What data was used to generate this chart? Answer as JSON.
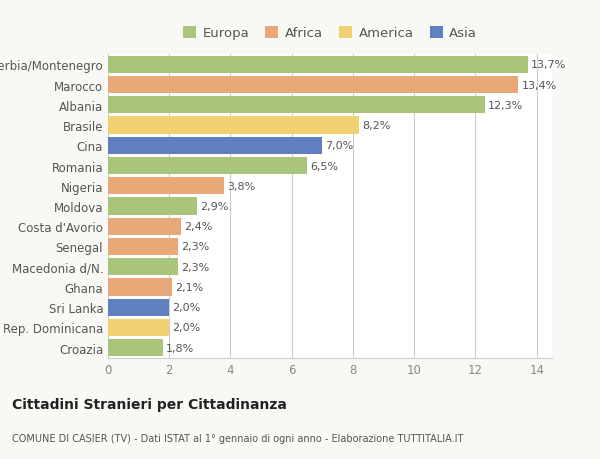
{
  "categories": [
    "Serbia/Montenegro",
    "Marocco",
    "Albania",
    "Brasile",
    "Cina",
    "Romania",
    "Nigeria",
    "Moldova",
    "Costa d'Avorio",
    "Senegal",
    "Macedonia d/N.",
    "Ghana",
    "Sri Lanka",
    "Rep. Dominicana",
    "Croazia"
  ],
  "values": [
    13.7,
    13.4,
    12.3,
    8.2,
    7.0,
    6.5,
    3.8,
    2.9,
    2.4,
    2.3,
    2.3,
    2.1,
    2.0,
    2.0,
    1.8
  ],
  "labels": [
    "13,7%",
    "13,4%",
    "12,3%",
    "8,2%",
    "7,0%",
    "6,5%",
    "3,8%",
    "2,9%",
    "2,4%",
    "2,3%",
    "2,3%",
    "2,1%",
    "2,0%",
    "2,0%",
    "1,8%"
  ],
  "continents": [
    "Europa",
    "Africa",
    "Europa",
    "America",
    "Asia",
    "Europa",
    "Africa",
    "Europa",
    "Africa",
    "Africa",
    "Europa",
    "Africa",
    "Asia",
    "America",
    "Europa"
  ],
  "continent_colors": {
    "Europa": "#a8c57a",
    "Africa": "#e8a878",
    "America": "#f0d070",
    "Asia": "#6080c0"
  },
  "legend_labels": [
    "Europa",
    "Africa",
    "America",
    "Asia"
  ],
  "legend_colors": [
    "#a8c57a",
    "#e8a878",
    "#f0d070",
    "#6080c0"
  ],
  "xlim": [
    0,
    14.5
  ],
  "xticks": [
    0,
    2,
    4,
    6,
    8,
    10,
    12,
    14
  ],
  "title": "Cittadini Stranieri per Cittadinanza",
  "subtitle": "COMUNE DI CASIER (TV) - Dati ISTAT al 1° gennaio di ogni anno - Elaborazione TUTTITALIA.IT",
  "bg_color": "#f8f8f5",
  "plot_bg_color": "#ffffff",
  "grid_color": "#cccccc",
  "label_color": "#555555",
  "tick_color": "#888888"
}
